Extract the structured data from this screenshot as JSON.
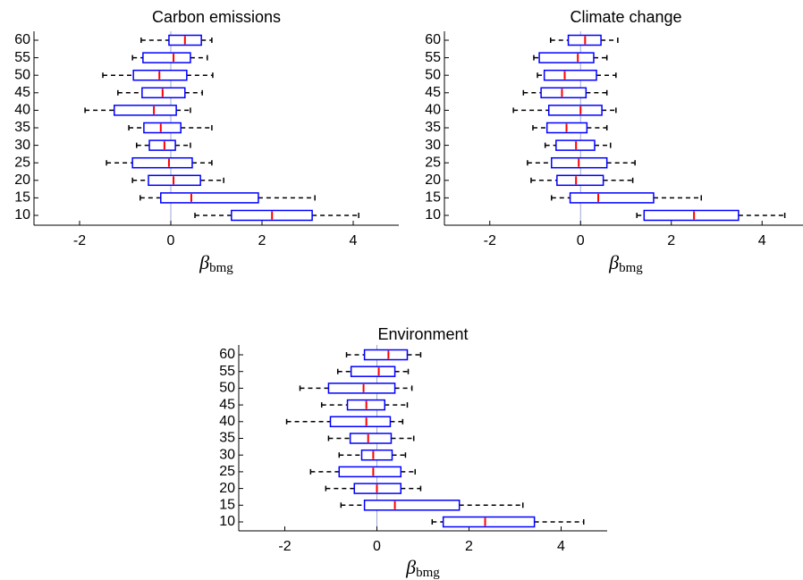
{
  "chart_data": [
    {
      "type": "box",
      "title": "Carbon emissions",
      "x_label": "β",
      "x_label_subscript": "bmg",
      "categories": [
        "10",
        "15",
        "20",
        "25",
        "30",
        "35",
        "40",
        "45",
        "50",
        "55",
        "60"
      ],
      "min": [
        0.53,
        -0.67,
        -0.84,
        -1.41,
        -0.75,
        -0.92,
        -1.88,
        -1.16,
        -1.49,
        -0.84,
        -0.65
      ],
      "q1": [
        1.33,
        -0.22,
        -0.49,
        -0.84,
        -0.47,
        -0.59,
        -1.24,
        -0.63,
        -0.82,
        -0.61,
        -0.04
      ],
      "median": [
        2.22,
        0.45,
        0.06,
        -0.04,
        -0.14,
        -0.22,
        -0.37,
        -0.18,
        -0.25,
        0.06,
        0.31
      ],
      "q3": [
        3.1,
        1.92,
        0.65,
        0.47,
        0.1,
        0.22,
        0.12,
        0.31,
        0.35,
        0.43,
        0.67
      ],
      "max": [
        4.12,
        3.16,
        1.16,
        0.9,
        0.43,
        0.9,
        0.43,
        0.69,
        0.92,
        0.8,
        0.9
      ],
      "box_color": "#0000ff",
      "median_color": "#ff0000",
      "zero_line_color": "#9aa7d6",
      "xlim": [
        -3,
        5
      ],
      "xticks": [
        -2,
        0,
        2,
        4
      ]
    },
    {
      "type": "box",
      "title": "Climate change",
      "x_label": "β",
      "x_label_subscript": "bmg",
      "categories": [
        "10",
        "15",
        "20",
        "25",
        "30",
        "35",
        "40",
        "45",
        "50",
        "55",
        "60"
      ],
      "min": [
        1.24,
        -0.64,
        -1.09,
        -1.17,
        -0.78,
        -1.05,
        -1.48,
        -1.26,
        -0.95,
        -1.03,
        -0.66
      ],
      "q1": [
        1.4,
        -0.23,
        -0.52,
        -0.64,
        -0.54,
        -0.74,
        -0.7,
        -0.87,
        -0.8,
        -0.91,
        -0.27
      ],
      "median": [
        2.5,
        0.39,
        -0.1,
        -0.04,
        -0.1,
        -0.31,
        0,
        -0.41,
        -0.35,
        -0.06,
        0.1
      ],
      "q3": [
        3.48,
        1.61,
        0.5,
        0.58,
        0.31,
        0.14,
        0.47,
        0.12,
        0.35,
        0.29,
        0.45
      ],
      "max": [
        4.5,
        2.66,
        1.15,
        1.2,
        0.66,
        0.58,
        0.78,
        0.58,
        0.78,
        0.58,
        0.82
      ],
      "box_color": "#0000ff",
      "median_color": "#ff0000",
      "zero_line_color": "#9aa7d6",
      "xlim": [
        -3,
        5
      ],
      "xticks": [
        -2,
        0,
        2,
        4
      ]
    },
    {
      "type": "box",
      "title": "Environment",
      "x_label": "β",
      "x_label_subscript": "bmg",
      "categories": [
        "10",
        "15",
        "20",
        "25",
        "30",
        "35",
        "40",
        "45",
        "50",
        "55",
        "60"
      ],
      "min": [
        1.2,
        -0.78,
        -1.11,
        -1.44,
        -0.82,
        -1.05,
        -1.96,
        -1.2,
        -1.67,
        -0.85,
        -0.66
      ],
      "q1": [
        1.44,
        -0.27,
        -0.49,
        -0.82,
        -0.33,
        -0.58,
        -1.01,
        -0.64,
        -1.05,
        -0.56,
        -0.27
      ],
      "median": [
        2.35,
        0.39,
        0,
        -0.08,
        -0.08,
        -0.19,
        -0.23,
        -0.23,
        -0.29,
        0.04,
        0.25
      ],
      "q3": [
        3.42,
        1.79,
        0.52,
        0.52,
        0.33,
        0.31,
        0.29,
        0.17,
        0.39,
        0.39,
        0.66
      ],
      "max": [
        4.49,
        3.17,
        0.95,
        0.83,
        0.62,
        0.8,
        0.56,
        0.66,
        0.76,
        0.68,
        0.95
      ],
      "box_color": "#0000ff",
      "median_color": "#ff0000",
      "zero_line_color": "#9aa7d6",
      "xlim": [
        -3,
        5
      ],
      "xticks": [
        -2,
        0,
        2,
        4
      ]
    }
  ]
}
